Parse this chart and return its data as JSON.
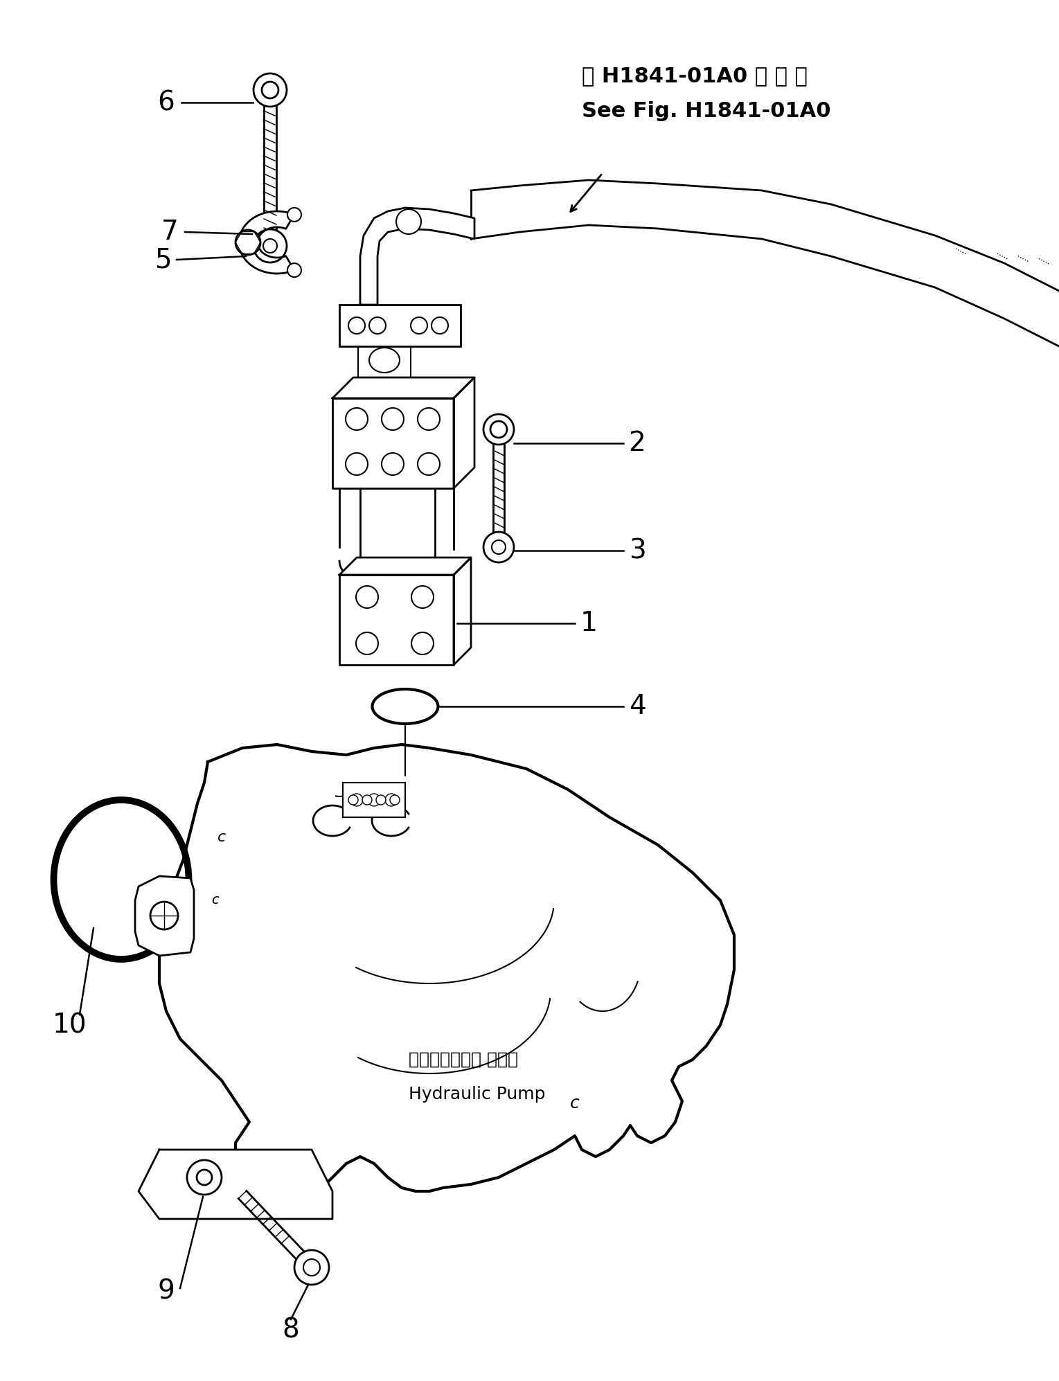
{
  "bg_color": "#ffffff",
  "line_color": "#000000",
  "fig_width": 15.29,
  "fig_height": 19.94,
  "title_jp": "第 H1841-01A0 図 参 照",
  "title_en": "See Fig. H1841-01A0",
  "label_pump_jp": "ハイドロリック ポンプ",
  "label_pump_en": "Hydraulic Pump"
}
